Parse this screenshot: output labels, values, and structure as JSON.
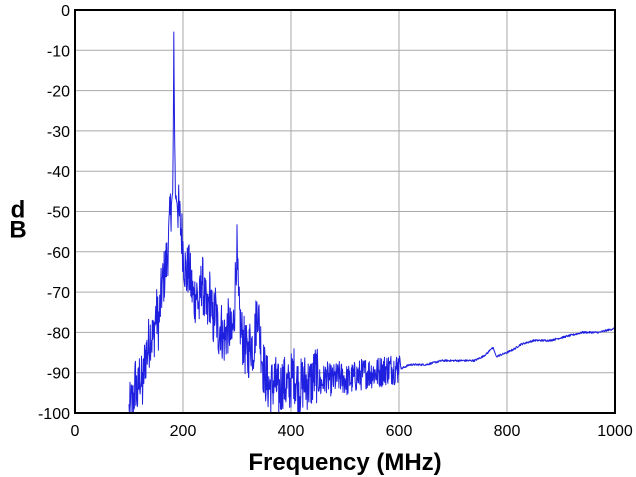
{
  "chart_data": {
    "type": "line",
    "title": "",
    "xlabel": "Frequency (MHz)",
    "ylabel": "dB",
    "xlim": [
      0,
      1000
    ],
    "ylim": [
      -100,
      0
    ],
    "xticks": [
      0,
      200,
      400,
      600,
      800,
      1000
    ],
    "yticks": [
      0,
      -10,
      -20,
      -30,
      -40,
      -50,
      -60,
      -70,
      -80,
      -90,
      -100
    ],
    "grid": true,
    "legend": "none",
    "line_color": "#1f1fe0",
    "series": [
      {
        "values_xy": [
          [
            100,
            -100
          ],
          [
            108,
            -97
          ],
          [
            112,
            -92
          ],
          [
            116,
            -96
          ],
          [
            120,
            -90
          ],
          [
            125,
            -94
          ],
          [
            130,
            -86
          ],
          [
            135,
            -84
          ],
          [
            140,
            -80
          ],
          [
            145,
            -82
          ],
          [
            150,
            -75
          ],
          [
            155,
            -78
          ],
          [
            160,
            -70
          ],
          [
            165,
            -66
          ],
          [
            170,
            -62
          ],
          [
            174,
            -56
          ],
          [
            178,
            -48
          ],
          [
            181,
            -46
          ],
          [
            182,
            -30
          ],
          [
            183,
            -6
          ],
          [
            184,
            -25
          ],
          [
            186,
            -46
          ],
          [
            190,
            -48
          ],
          [
            194,
            -52
          ],
          [
            198,
            -56
          ],
          [
            202,
            -62
          ],
          [
            206,
            -66
          ],
          [
            210,
            -64
          ],
          [
            215,
            -68
          ],
          [
            220,
            -72
          ],
          [
            225,
            -70
          ],
          [
            230,
            -74
          ],
          [
            235,
            -66
          ],
          [
            240,
            -72
          ],
          [
            245,
            -76
          ],
          [
            250,
            -70
          ],
          [
            255,
            -78
          ],
          [
            260,
            -74
          ],
          [
            265,
            -80
          ],
          [
            270,
            -78
          ],
          [
            275,
            -82
          ],
          [
            280,
            -80
          ],
          [
            285,
            -78
          ],
          [
            290,
            -82
          ],
          [
            295,
            -76
          ],
          [
            298,
            -62
          ],
          [
            300,
            -60
          ],
          [
            303,
            -74
          ],
          [
            308,
            -80
          ],
          [
            315,
            -84
          ],
          [
            320,
            -86
          ],
          [
            325,
            -82
          ],
          [
            330,
            -84
          ],
          [
            335,
            -78
          ],
          [
            338,
            -73
          ],
          [
            342,
            -80
          ],
          [
            348,
            -88
          ],
          [
            355,
            -92
          ],
          [
            362,
            -94
          ],
          [
            370,
            -92
          ],
          [
            378,
            -95
          ],
          [
            385,
            -92
          ],
          [
            395,
            -94
          ],
          [
            405,
            -90
          ],
          [
            415,
            -94
          ],
          [
            425,
            -92
          ],
          [
            435,
            -93
          ],
          [
            445,
            -90
          ],
          [
            455,
            -93
          ],
          [
            465,
            -91
          ],
          [
            475,
            -92
          ],
          [
            490,
            -91
          ],
          [
            505,
            -92
          ],
          [
            520,
            -91
          ],
          [
            540,
            -90
          ],
          [
            560,
            -90
          ],
          [
            580,
            -89
          ],
          [
            598,
            -89
          ],
          [
            601,
            -86
          ],
          [
            604,
            -89
          ],
          [
            620,
            -88
          ],
          [
            650,
            -88
          ],
          [
            680,
            -87
          ],
          [
            700,
            -87
          ],
          [
            720,
            -87
          ],
          [
            740,
            -87
          ],
          [
            755,
            -86
          ],
          [
            765,
            -85
          ],
          [
            770,
            -84
          ],
          [
            775,
            -84
          ],
          [
            780,
            -86
          ],
          [
            800,
            -85
          ],
          [
            815,
            -84
          ],
          [
            825,
            -83
          ],
          [
            850,
            -82
          ],
          [
            880,
            -82
          ],
          [
            910,
            -81
          ],
          [
            940,
            -80
          ],
          [
            970,
            -80
          ],
          [
            1000,
            -79
          ]
        ]
      }
    ]
  }
}
